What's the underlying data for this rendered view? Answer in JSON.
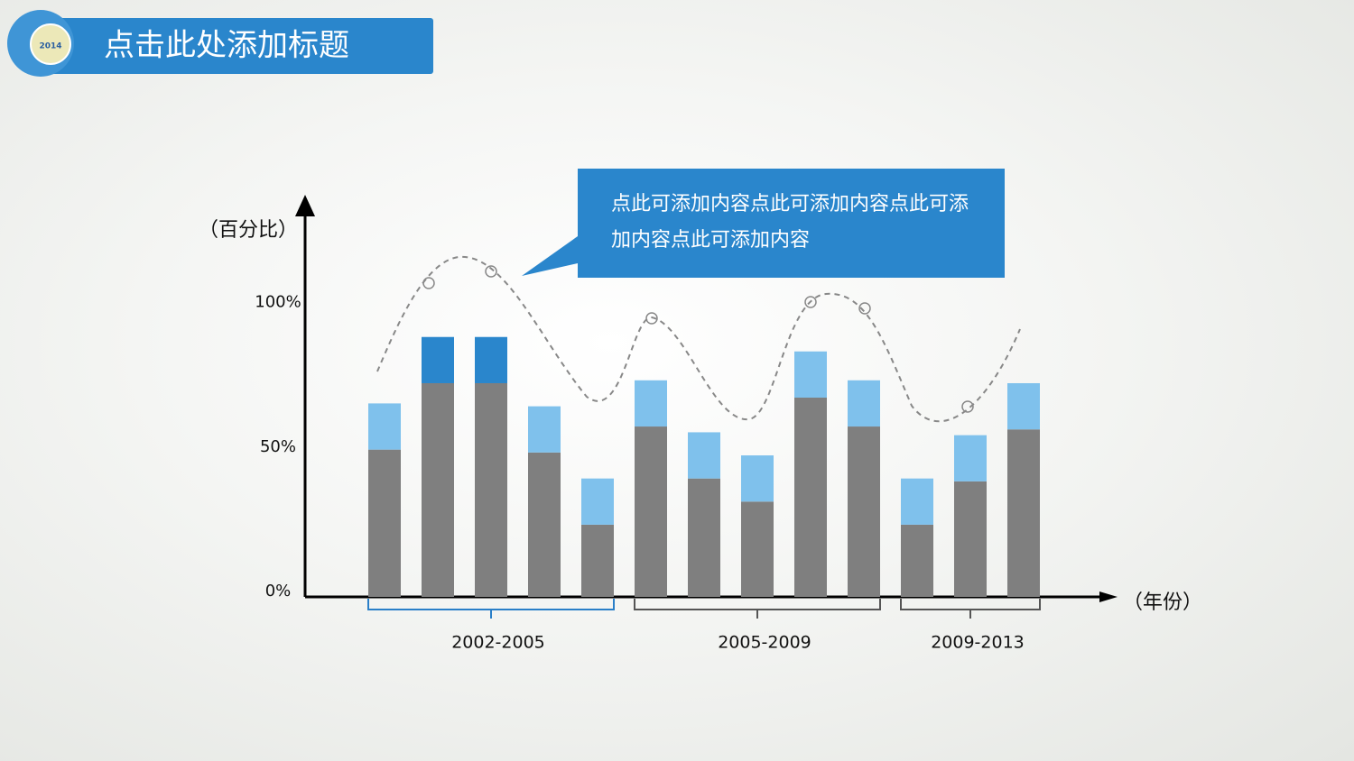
{
  "header": {
    "title": "点击此处添加标题",
    "logo_text": "2014"
  },
  "callout": {
    "text": "点此可添加内容点此可添加内容点此可添加内容点此可添加内容"
  },
  "chart_data": {
    "type": "stacked-bar",
    "y_label": "（百分比）",
    "x_label": "（年份）",
    "categories": [
      null,
      null,
      null,
      null,
      null,
      null,
      null,
      null,
      null,
      null,
      null,
      null,
      null
    ],
    "groups": [
      {
        "label": "2002-2005",
        "bars": 5,
        "color": "#2a7fc8"
      },
      {
        "label": "2005-2009",
        "bars": 5,
        "color": "#555555"
      },
      {
        "label": "2009-2013",
        "bars": 3,
        "color": "#555555"
      }
    ],
    "series": [
      {
        "color": "#7f7f7f",
        "values": [
          51,
          74,
          74,
          50,
          25,
          59,
          41,
          33,
          69,
          59,
          25,
          40,
          58
        ]
      },
      {
        "color": "#7fc1ec",
        "colors": [
          "#7fc1ec",
          "#2a86cc",
          "#2a86cc",
          "#7fc1ec",
          "#7fc1ec",
          "#7fc1ec",
          "#7fc1ec",
          "#7fc1ec",
          "#7fc1ec",
          "#7fc1ec",
          "#7fc1ec",
          "#7fc1ec",
          "#7fc1ec"
        ],
        "values": [
          16,
          16,
          16,
          16,
          16,
          16,
          16,
          16,
          16,
          16,
          16,
          16,
          16
        ]
      }
    ],
    "ylim": [
      0,
      138
    ],
    "yticks": [
      {
        "value": 0,
        "label": "0%"
      },
      {
        "value": 50,
        "label": "50%"
      },
      {
        "value": 100,
        "label": "100%"
      }
    ]
  }
}
